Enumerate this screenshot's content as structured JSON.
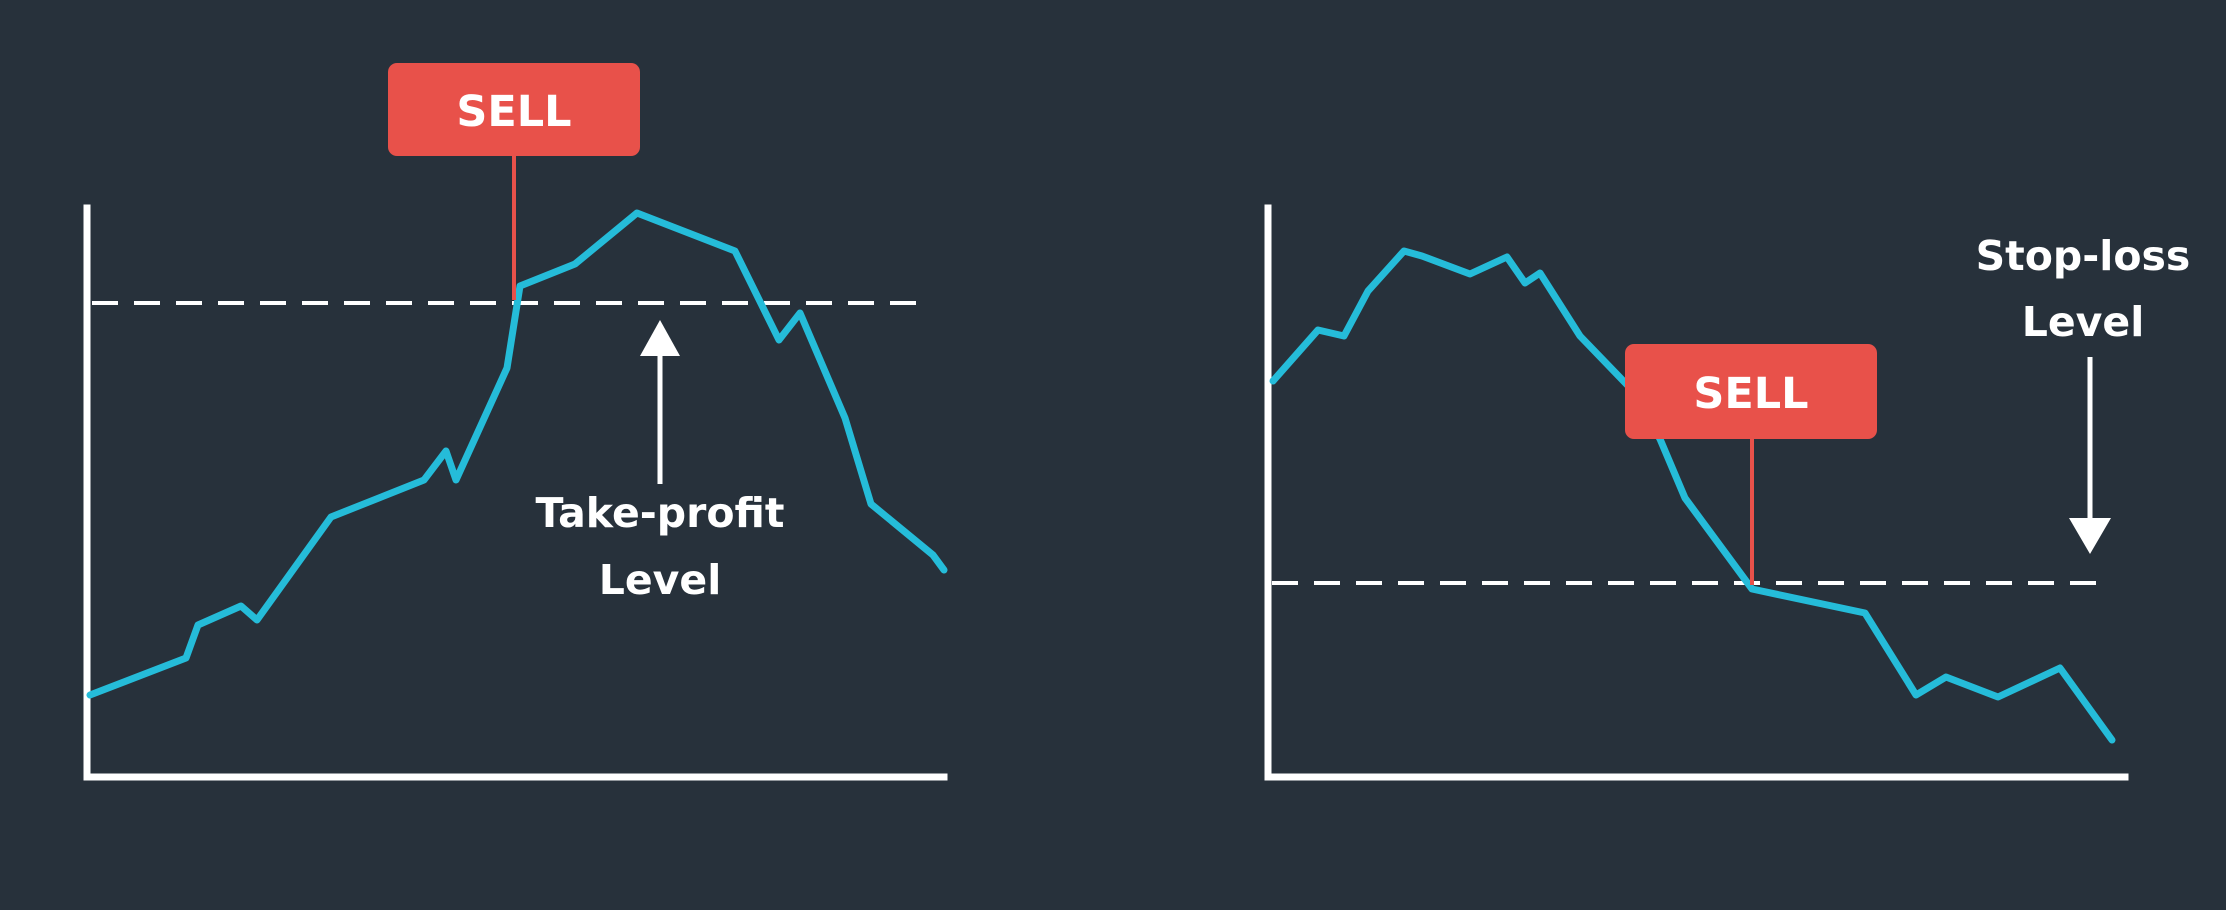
{
  "colors": {
    "background": "#27313b",
    "price_line": "#25bcd9",
    "sell_badge": "#e8514a",
    "axis": "#ffffff",
    "label_text": "#ffffff"
  },
  "panels": [
    {
      "id": "take-profit",
      "sell_label": "SELL",
      "level_label_line1": "Take-profit",
      "level_label_line2": "Level",
      "arrow_direction": "up"
    },
    {
      "id": "stop-loss",
      "sell_label": "SELL",
      "level_label_line1": "Stop-loss",
      "level_label_line2": "Level",
      "arrow_direction": "down"
    }
  ]
}
